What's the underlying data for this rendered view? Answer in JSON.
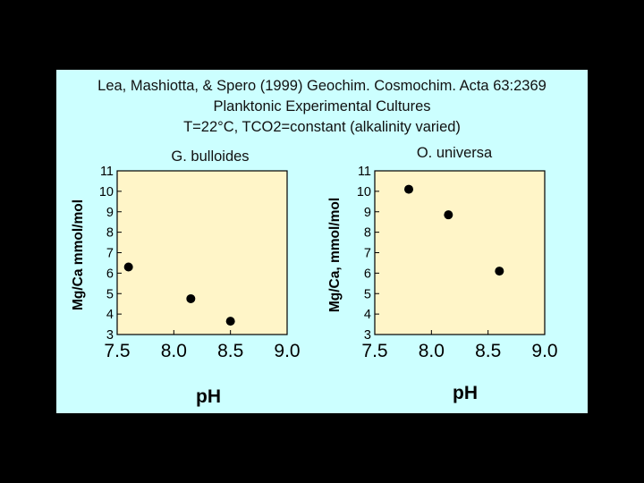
{
  "header": {
    "citation": "Lea, Mashiotta, & Spero (1999) Geochim. Cosmochim. Acta 63:2369",
    "line2": "Planktonic Experimental Cultures",
    "line3": "T=22°C, TCO2=constant (alkalinity varied)"
  },
  "colors": {
    "background": "#000000",
    "panel": "#ccffff",
    "plot_area": "#fff5c8",
    "marker": "#000000"
  },
  "chart_data": [
    {
      "type": "scatter",
      "title": "G. bulloides",
      "xlabel": "pH",
      "ylabel": "Mg/Ca  mmol/mol",
      "xlim": [
        7.5,
        9.0
      ],
      "ylim": [
        3,
        11
      ],
      "xticks": [
        "7.5",
        "8.0",
        "8.5",
        "9.0"
      ],
      "yticks": [
        "3",
        "4",
        "5",
        "6",
        "7",
        "8",
        "9",
        "10",
        "11"
      ],
      "points": [
        {
          "x": 7.6,
          "y": 6.3
        },
        {
          "x": 8.15,
          "y": 4.75
        },
        {
          "x": 8.5,
          "y": 3.65
        }
      ]
    },
    {
      "type": "scatter",
      "title": "O. universa",
      "xlabel": "pH",
      "ylabel": "Mg/Ca,  mmol/mol",
      "xlim": [
        7.5,
        9.0
      ],
      "ylim": [
        3,
        11
      ],
      "xticks": [
        "7.5",
        "8.0",
        "8.5",
        "9.0"
      ],
      "yticks": [
        "3",
        "4",
        "5",
        "6",
        "7",
        "8",
        "9",
        "10",
        "11"
      ],
      "points": [
        {
          "x": 7.8,
          "y": 10.1
        },
        {
          "x": 8.15,
          "y": 8.85
        },
        {
          "x": 8.6,
          "y": 6.1
        }
      ]
    }
  ]
}
